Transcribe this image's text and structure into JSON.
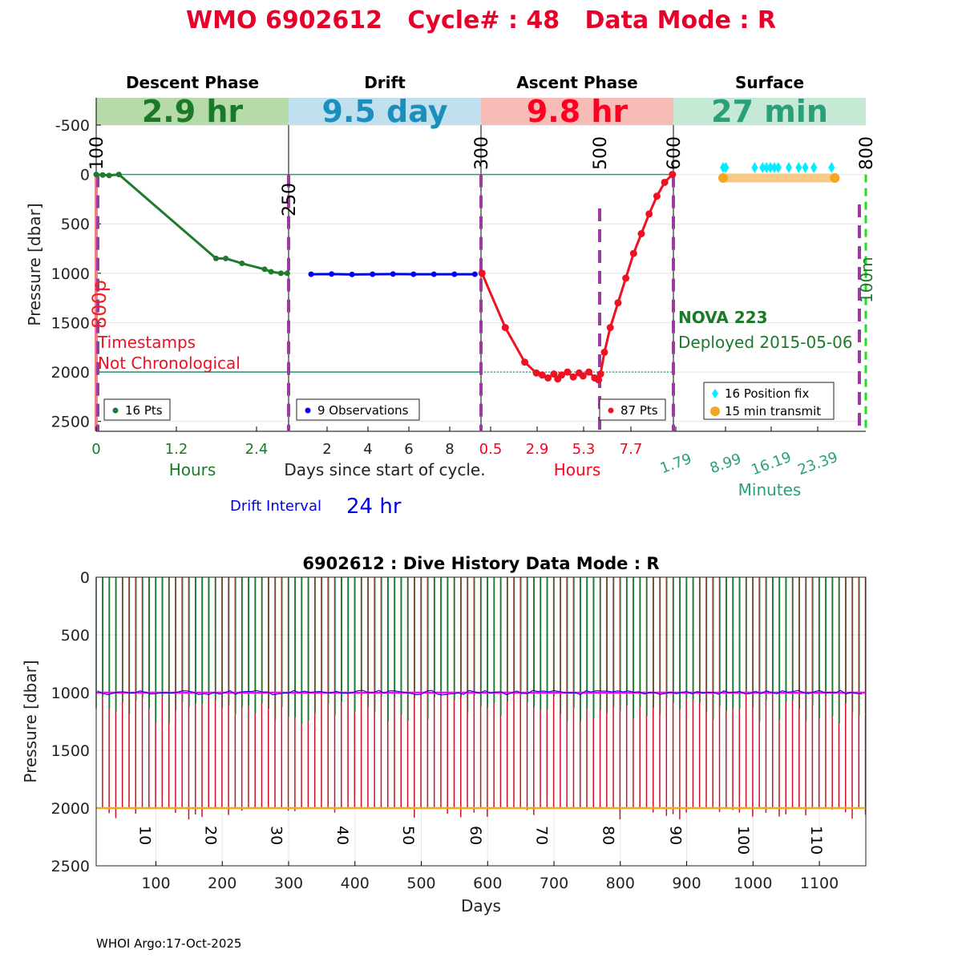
{
  "header": {
    "title": "WMO 6902612   Cycle# : 48   Data Mode : R",
    "title_color": "#e8002a"
  },
  "footer": {
    "credit": "WHOI Argo:17-Oct-2025"
  },
  "chart_data": [
    {
      "type": "line",
      "id": "cycle-profile",
      "ylabel": "Pressure [dbar]",
      "yticks": [
        -500,
        0,
        500,
        1000,
        1500,
        2000,
        2500
      ],
      "y_reversed": true,
      "panels": [
        {
          "name": "Descent Phase",
          "duration": "2.9 hr",
          "band_color": "#b7dba8",
          "text_color": "#1a7a2a",
          "xlabel": "Hours",
          "xticks": [
            "0",
            "1.2",
            "2.4"
          ],
          "legend": "16 Pts",
          "series_color": "#1e7b2e",
          "x": [
            0,
            0.1,
            0.2,
            0.35,
            1.85,
            2.0,
            2.25,
            2.6,
            2.7,
            2.85,
            2.95
          ],
          "y": [
            0,
            5,
            10,
            0,
            850,
            850,
            900,
            960,
            985,
            1000,
            1000
          ]
        },
        {
          "name": "Drift",
          "duration": "9.5 day",
          "band_color": "#c0e0ee",
          "text_color": "#1a8fbf",
          "xlabel": "Days since start of cycle.",
          "xticks": [
            "2",
            "4",
            "6",
            "8"
          ],
          "legend": "9 Observations",
          "series_color": "#0000ff",
          "x": [
            1.0,
            2.0,
            3.0,
            4.0,
            5.0,
            6.0,
            7.0,
            8.0,
            9.0
          ],
          "y": [
            1010,
            1008,
            1012,
            1010,
            1008,
            1010,
            1010,
            1010,
            1010
          ]
        },
        {
          "name": "Ascent Phase",
          "duration": "9.8 hr",
          "band_color": "#f7bcb6",
          "text_color": "#ff0022",
          "xlabel": "Hours",
          "xticks": [
            "0.5",
            "2.9",
            "5.3",
            "7.7"
          ],
          "legend": "87 Pts",
          "series_color": "#ee1122",
          "x": [
            0,
            1.2,
            2.2,
            2.8,
            3.1,
            3.4,
            3.7,
            3.9,
            4.1,
            4.4,
            4.7,
            5.0,
            5.2,
            5.5,
            5.8,
            6.0,
            6.1,
            6.3,
            6.6,
            7.0,
            7.4,
            7.8,
            8.2,
            8.6,
            9.0,
            9.4,
            9.8
          ],
          "y": [
            1000,
            1550,
            1900,
            2010,
            2030,
            2060,
            2020,
            2070,
            2030,
            2000,
            2050,
            2010,
            2040,
            2000,
            2060,
            2080,
            2020,
            1800,
            1550,
            1300,
            1050,
            800,
            600,
            400,
            220,
            80,
            0
          ]
        },
        {
          "name": "Surface",
          "duration": "27 min",
          "band_color": "#c6e9d6",
          "text_color": "#2aa07a",
          "xlabel": "Minutes",
          "xticks": [
            "1.79",
            "8.99",
            "16.19",
            "23.39"
          ],
          "legend_fix": "16 Position fix",
          "legend_tx": "15 min transmit",
          "fix_color": "#00eeff",
          "tx_color": "#f5a623",
          "fix_x": [
            8.99,
            9.4,
            13.8,
            15.0,
            15.6,
            16.2,
            16.8,
            17.4,
            19.0,
            20.5,
            21.5,
            22.8,
            25.5
          ],
          "transmit_x": [
            8.99,
            26.0
          ],
          "float_name": "NOVA 223",
          "deployed": "Deployed 2015-05-06"
        }
      ],
      "marker_labels": [
        "100",
        "250",
        "300",
        "500",
        "600",
        "800"
      ],
      "side_labels": {
        "left": "800p",
        "right": "100m"
      },
      "annotation": [
        "Timestamps",
        "Not Chronological"
      ],
      "drift_interval_label": "Drift Interval",
      "drift_interval_value": "24 hr"
    },
    {
      "type": "line",
      "id": "dive-history",
      "title": "6902612 : Dive History      Data Mode : R",
      "xlabel": "Days",
      "ylabel": "Pressure [dbar]",
      "xlim": [
        10,
        1170
      ],
      "ylim": [
        0,
        2500
      ],
      "xticks": [
        100,
        200,
        300,
        400,
        500,
        600,
        700,
        800,
        900,
        1000,
        1100
      ],
      "yticks": [
        0,
        500,
        1000,
        1500,
        2000,
        2500
      ],
      "cycle_labels": [
        "10",
        "20",
        "30",
        "40",
        "50",
        "60",
        "70",
        "80",
        "90",
        "100",
        "110"
      ],
      "cycle_label_days": [
        76,
        175,
        274,
        374,
        473,
        574,
        674,
        774,
        876,
        978,
        1088
      ],
      "cycles": 116,
      "park_pressure": 1000,
      "profile_pressure": 2000,
      "park_color": "#ff00ff",
      "profile_color": "#f5a623",
      "descent_color": "#1e7b2e",
      "ascent_color": "#cc1122"
    }
  ]
}
